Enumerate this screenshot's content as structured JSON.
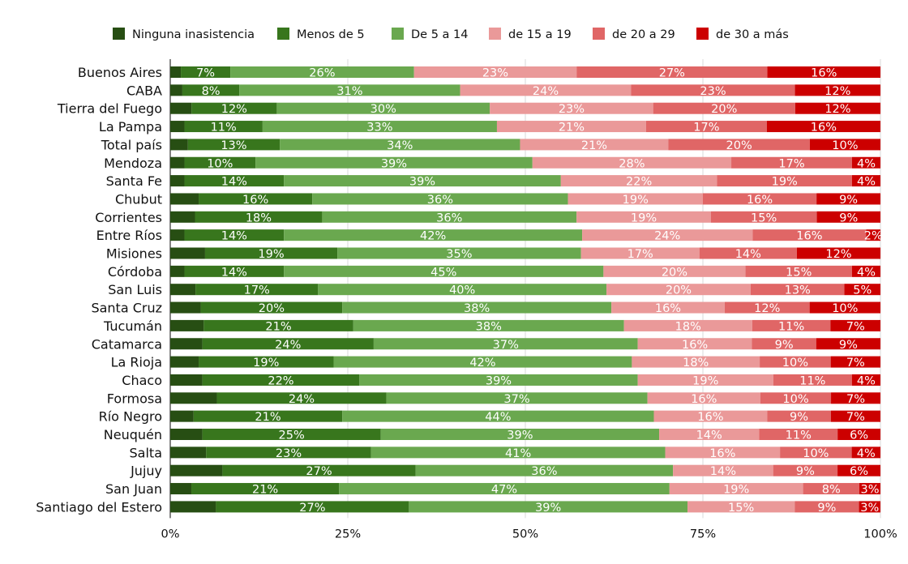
{
  "chart_data": {
    "type": "bar",
    "orientation": "horizontal",
    "stacked": true,
    "percent_stacked": true,
    "legend_position": "top",
    "grid": "vertical",
    "xlim": [
      0,
      100
    ],
    "x_ticks": [
      "0%",
      "25%",
      "50%",
      "75%",
      "100%"
    ],
    "categories": [
      "Buenos Aires",
      "CABA",
      "Tierra del Fuego",
      "La Pampa",
      "Total país",
      "Mendoza",
      "Santa Fe",
      "Chubut",
      "Corrientes",
      "Entre Ríos",
      "Misiones",
      "Córdoba",
      "San Luis",
      "Santa Cruz",
      "Tucumán",
      "Catamarca",
      "La Rioja",
      "Chaco",
      "Formosa",
      "Río Negro",
      "Neuquén",
      "Salta",
      "Jujuy",
      "San Juan",
      "Santiago del Estero"
    ],
    "series": [
      {
        "name": "Ninguna inasistencia",
        "color": "#274e13",
        "values": [
          1.5,
          1.7,
          3,
          2,
          2.5,
          2,
          2,
          4,
          3.5,
          2,
          5,
          2,
          3.5,
          4.3,
          4.7,
          4.5,
          4,
          4.5,
          6.6,
          3.3,
          4.5,
          5,
          7.3,
          3,
          6.4
        ]
      },
      {
        "name": "Menos de 5",
        "color": "#38761d",
        "values": [
          7,
          8,
          12,
          11,
          13,
          10,
          14,
          16,
          18,
          14,
          19,
          14,
          17,
          20,
          21,
          24,
          19,
          22,
          24,
          21,
          25,
          23,
          27,
          21,
          27
        ]
      },
      {
        "name": "De 5 a 14",
        "color": "#6aa84f",
        "values": [
          26,
          31,
          30,
          33,
          34,
          39,
          39,
          36,
          36,
          42,
          35,
          45,
          40,
          38,
          38,
          37,
          42,
          39,
          37,
          44,
          39,
          41,
          36,
          47,
          39
        ]
      },
      {
        "name": "de 15 a 19",
        "color": "#ea9999",
        "values": [
          23,
          24,
          23,
          21,
          21,
          28,
          22,
          19,
          19,
          24,
          17,
          20,
          20,
          16,
          18,
          16,
          18,
          19,
          16,
          16,
          14,
          16,
          14,
          19,
          15
        ]
      },
      {
        "name": "de 20 a 29",
        "color": "#e06666",
        "values": [
          27,
          23,
          20,
          17,
          20,
          17,
          19,
          16,
          15,
          16,
          14,
          15,
          13,
          12,
          11,
          9,
          10,
          11,
          10,
          9,
          11,
          10,
          9,
          8,
          9
        ]
      },
      {
        "name": "de 30 a más",
        "color": "#cc0000",
        "values": [
          16,
          12,
          12,
          16,
          10,
          4,
          4,
          9,
          9,
          2,
          12,
          4,
          5,
          10,
          7,
          9,
          7,
          4,
          7,
          7,
          6,
          4,
          6,
          3,
          3
        ]
      }
    ],
    "data_labels": [
      [
        "",
        "7%",
        "26%",
        "23%",
        "27%",
        "16%"
      ],
      [
        "",
        "8%",
        "31%",
        "24%",
        "23%",
        "12%"
      ],
      [
        "",
        "12%",
        "30%",
        "23%",
        "20%",
        "12%"
      ],
      [
        "",
        "11%",
        "33%",
        "21%",
        "17%",
        "16%"
      ],
      [
        "",
        "13%",
        "34%",
        "21%",
        "20%",
        "10%"
      ],
      [
        "",
        "10%",
        "39%",
        "28%",
        "17%",
        "4%"
      ],
      [
        "",
        "14%",
        "39%",
        "22%",
        "19%",
        "4%"
      ],
      [
        "",
        "16%",
        "36%",
        "19%",
        "16%",
        "9%"
      ],
      [
        "",
        "18%",
        "36%",
        "19%",
        "15%",
        "9%"
      ],
      [
        "",
        "14%",
        "42%",
        "24%",
        "16%",
        "2%"
      ],
      [
        "",
        "19%",
        "35%",
        "17%",
        "14%",
        "12%"
      ],
      [
        "",
        "14%",
        "45%",
        "20%",
        "15%",
        "4%"
      ],
      [
        "",
        "17%",
        "40%",
        "20%",
        "13%",
        "5%"
      ],
      [
        "",
        "20%",
        "38%",
        "16%",
        "12%",
        "10%"
      ],
      [
        "",
        "21%",
        "38%",
        "18%",
        "11%",
        "7%"
      ],
      [
        "",
        "24%",
        "37%",
        "16%",
        "9%",
        "9%"
      ],
      [
        "",
        "19%",
        "42%",
        "18%",
        "10%",
        "7%"
      ],
      [
        "",
        "22%",
        "39%",
        "19%",
        "11%",
        "4%"
      ],
      [
        "",
        "24%",
        "37%",
        "16%",
        "10%",
        "7%"
      ],
      [
        "",
        "21%",
        "44%",
        "16%",
        "9%",
        "7%"
      ],
      [
        "",
        "25%",
        "39%",
        "14%",
        "11%",
        "6%"
      ],
      [
        "",
        "23%",
        "41%",
        "16%",
        "10%",
        "4%"
      ],
      [
        "",
        "27%",
        "36%",
        "14%",
        "9%",
        "6%"
      ],
      [
        "",
        "21%",
        "47%",
        "19%",
        "8%",
        "3%"
      ],
      [
        "",
        "27%",
        "39%",
        "15%",
        "9%",
        "3%"
      ]
    ]
  }
}
